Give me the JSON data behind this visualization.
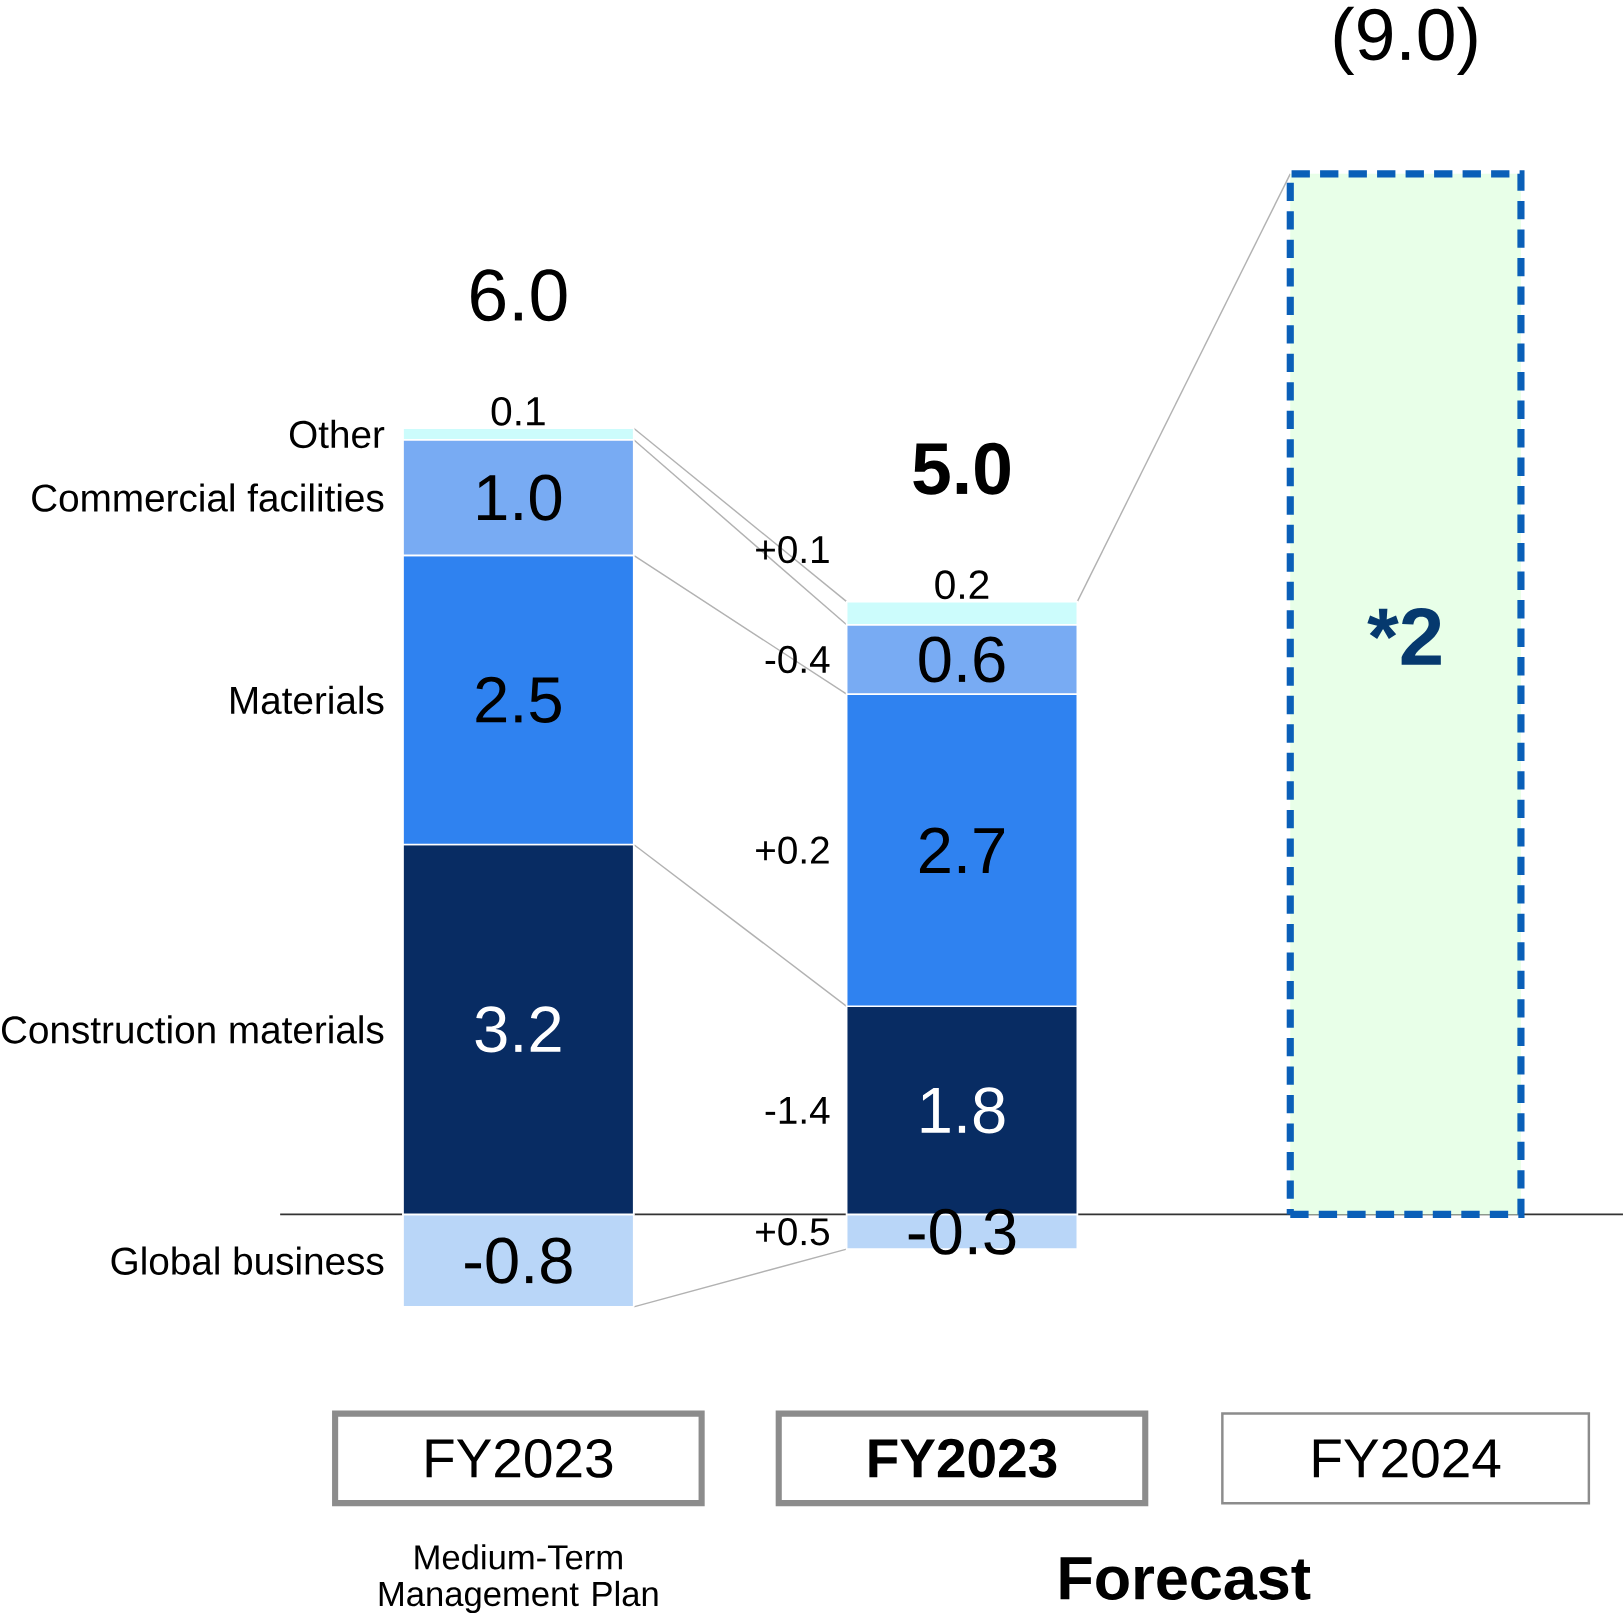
{
  "chart_data": {
    "type": "bar",
    "stacked": true,
    "categories": [
      "FY2023",
      "FY2023",
      "FY2024"
    ],
    "series": [
      {
        "name": "Global business",
        "color": "#b9d6f8",
        "values": [
          -0.8,
          -0.3,
          null
        ],
        "value_labels": [
          "-0.8",
          "-0.3",
          null
        ]
      },
      {
        "name": "Construction materials",
        "color": "#082c63",
        "values": [
          3.2,
          1.8,
          null
        ],
        "value_labels": [
          "3.2",
          "1.8",
          null
        ]
      },
      {
        "name": "Materials",
        "color": "#2f82f0",
        "values": [
          2.5,
          2.7,
          null
        ],
        "value_labels": [
          "2.5",
          "2.7",
          null
        ]
      },
      {
        "name": "Commercial facilities",
        "color": "#78abf3",
        "values": [
          1.0,
          0.6,
          null
        ],
        "value_labels": [
          "1.0",
          "0.6",
          null
        ]
      },
      {
        "name": "Other",
        "color": "#ccfcfc",
        "values": [
          0.1,
          0.2,
          null
        ],
        "value_labels": [
          "0.1",
          "0.2",
          null
        ]
      },
      {
        "color": "#0a5fb8",
        "line_style": "dashed",
        "values": [
          null,
          null,
          9.0
        ]
      }
    ],
    "totals": [
      "6.0",
      "5.0",
      "(9.0)"
    ],
    "annotations": [
      "+0.1",
      "-0.4",
      "+0.2",
      "-1.4",
      "+0.5",
      "*2",
      "Medium-Term Management Plan",
      "Forecast"
    ]
  }
}
